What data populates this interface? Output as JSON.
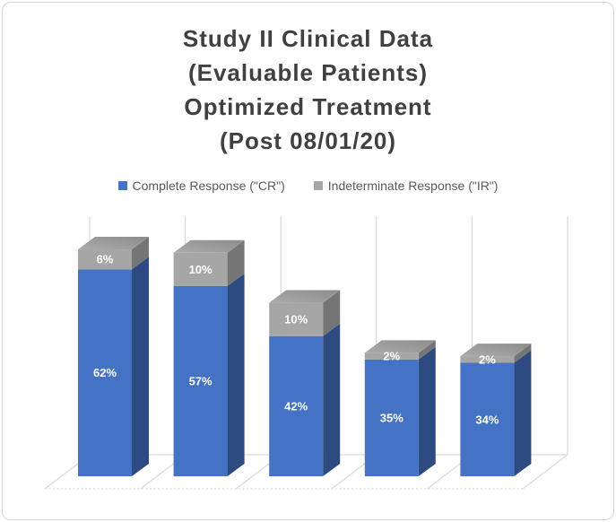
{
  "frame": {
    "background": "#FFFFFF",
    "border_color": "#D5D5D5"
  },
  "title": {
    "lines": [
      "Study II Clinical Data",
      "(Evaluable Patients)",
      "Optimized Treatment",
      "(Post 08/01/20)"
    ],
    "color": "#404040"
  },
  "legend": {
    "position": "top",
    "text_color": "#595959",
    "items": [
      {
        "label": "Complete Response (\"CR\")",
        "color": "#4472C4"
      },
      {
        "label": "Indeterminate Response (\"IR\")",
        "color": "#A6A6A6"
      }
    ]
  },
  "chart_data": {
    "type": "bar",
    "subtype": "3d-stacked-column",
    "title": "Study II Clinical Data (Evaluable Patients) Optimized Treatment (Post 08/01/20)",
    "categories": [
      "",
      "",
      "",
      "",
      ""
    ],
    "category_axis_labels_visible": false,
    "value_axis_visible": false,
    "legend_position": "top",
    "gridlines": {
      "style": "vertical-category-lines",
      "color": "#D9D9D9"
    },
    "data_label_color": "#FFFFFF",
    "series": [
      {
        "name": "Complete Response (\"CR\")",
        "color": "#4472C4",
        "side_color": "#2D4B80",
        "values": [
          62,
          57,
          42,
          35,
          34
        ],
        "data_labels": [
          "62%",
          "57%",
          "42%",
          "35%",
          "34%"
        ]
      },
      {
        "name": "Indeterminate Response (\"IR\")",
        "color": "#A6A6A6",
        "side_color": "#757575",
        "top_color_light": "#ABABAB",
        "top_color_dark": "#8C8C8C",
        "values": [
          6,
          10,
          10,
          2,
          2
        ],
        "data_labels": [
          "6%",
          "10%",
          "10%",
          "2%",
          "2%"
        ]
      }
    ]
  }
}
